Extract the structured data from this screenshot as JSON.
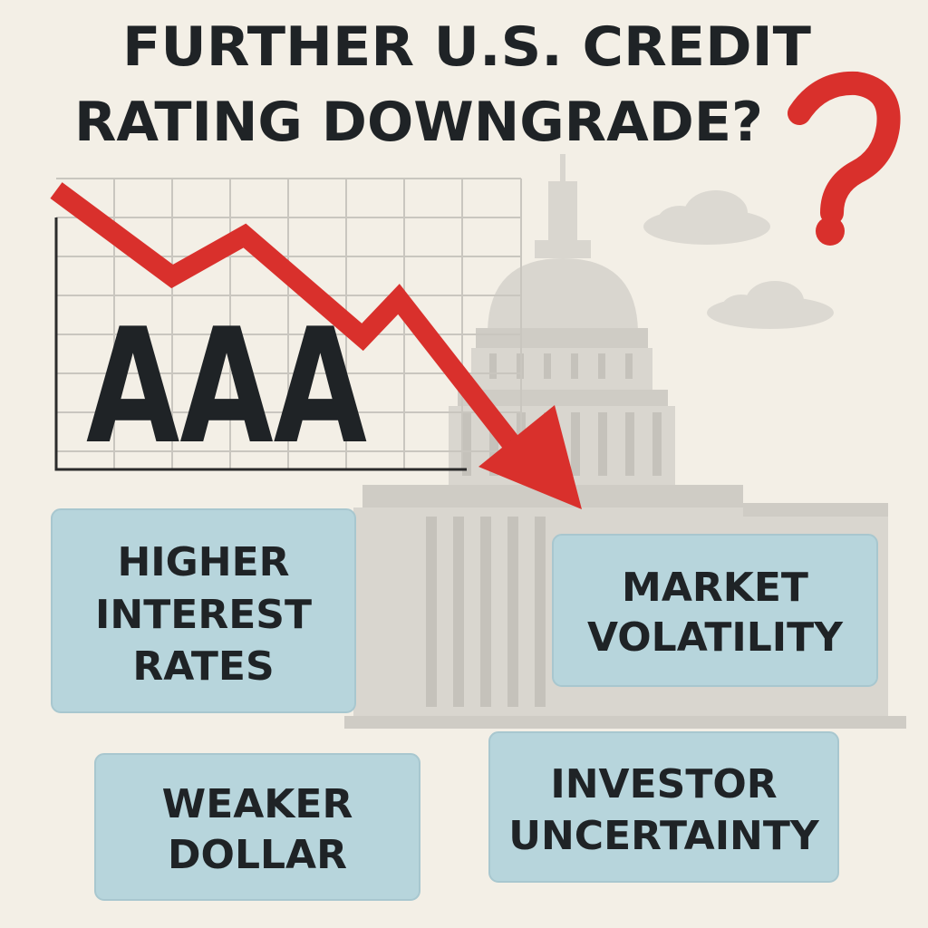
{
  "title": {
    "lines": [
      "FURTHER U.S. CREDIT",
      "RATING DOWNGRADE?"
    ]
  },
  "rating": "AAA",
  "boxes": [
    {
      "lines": [
        "HIGHER",
        "INTEREST",
        "RATES"
      ]
    },
    {
      "lines": [
        "MARKET",
        "VOLATILITY"
      ]
    },
    {
      "lines": [
        "WEAKER",
        "DOLLAR"
      ]
    },
    {
      "lines": [
        "INVESTOR",
        "UNCERTAINTY"
      ]
    }
  ]
}
